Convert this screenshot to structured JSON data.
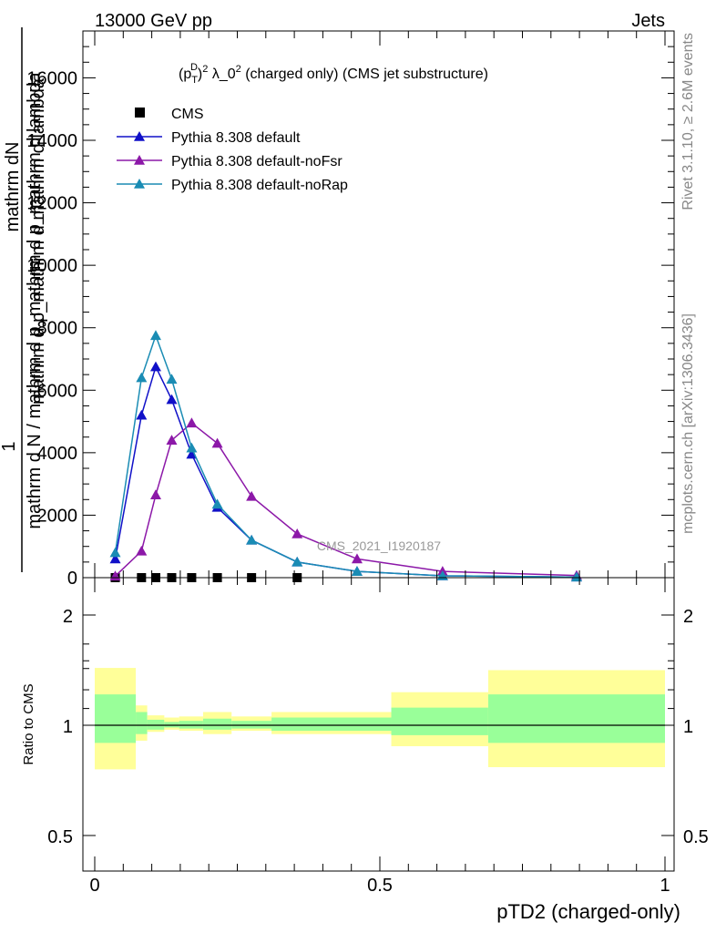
{
  "header": {
    "left": "13000 GeV pp",
    "right": "Jets"
  },
  "side_labels": {
    "rivet": "Rivet 3.1.10, ≥ 2.6M events",
    "mcplots": "mcplots.cern.ch [arXiv:1306.3436]"
  },
  "chart_data": [
    {
      "type": "line",
      "title_parts": {
        "pre": "(p",
        "sub": "T",
        "sup": "D",
        "post1": ")",
        "sup2": "2",
        "post2": " λ_0",
        "sup3": "2",
        "post3": " (charged only) (CMS jet substructure)"
      },
      "ylabel": {
        "numerator": "mathrm dN",
        "num_prefix": "1",
        "denominator": "mathrm d N / mathrm d p_mathrm d p_mathrm d lambda",
        "overlay": "mathrm d p_mathrm d mathrm d lambda"
      },
      "watermark": "CMS_2021_I1920187",
      "xlim": [
        0,
        1
      ],
      "ylim": [
        0,
        17500
      ],
      "y_ticks": [
        0,
        2000,
        4000,
        6000,
        8000,
        10000,
        12000,
        14000,
        16000
      ],
      "y_tick_labels": [
        "0",
        "2000",
        "4000",
        "6000",
        "8000",
        "10000",
        "12000",
        "14000",
        "16000"
      ],
      "legend_placement": "top-left",
      "series": [
        {
          "name": "CMS",
          "color": "#000000",
          "marker": "square",
          "x": [
            0.036,
            0.082,
            0.107,
            0.135,
            0.17,
            0.215,
            0.275,
            0.355
          ],
          "y": [
            0,
            0,
            0,
            0,
            0,
            0,
            0,
            0
          ]
        },
        {
          "name": "Pythia 8.308 default",
          "color": "#1010c8",
          "marker": "triangle",
          "x": [
            0.036,
            0.082,
            0.107,
            0.135,
            0.17,
            0.215,
            0.275,
            0.355,
            0.46,
            0.61,
            0.845
          ],
          "y": [
            600,
            5200,
            6750,
            5700,
            3950,
            2250,
            1200,
            500,
            200,
            60,
            20
          ]
        },
        {
          "name": "Pythia 8.308 default-noFsr",
          "color": "#8c18a8",
          "marker": "triangle",
          "x": [
            0.036,
            0.082,
            0.107,
            0.135,
            0.17,
            0.215,
            0.275,
            0.355,
            0.46,
            0.61,
            0.845
          ],
          "y": [
            50,
            850,
            2650,
            4400,
            4950,
            4300,
            2600,
            1400,
            600,
            200,
            70
          ]
        },
        {
          "name": "Pythia 8.308 default-noRap",
          "color": "#1a8cb4",
          "marker": "triangle",
          "x": [
            0.036,
            0.082,
            0.107,
            0.135,
            0.17,
            0.215,
            0.275,
            0.355,
            0.46,
            0.61,
            0.845
          ],
          "y": [
            800,
            6400,
            7750,
            6350,
            4150,
            2350,
            1200,
            500,
            200,
            60,
            20
          ]
        }
      ]
    },
    {
      "type": "area",
      "ylabel": "Ratio to CMS",
      "xlabel": "pTD2 (charged-only)",
      "xlim": [
        0,
        1
      ],
      "ylim": [
        0.4,
        2.3
      ],
      "x_ticks": [
        0,
        0.5,
        1
      ],
      "x_tick_labels": [
        "0",
        "0.5",
        "1"
      ],
      "y_ticks": [
        0.5,
        1,
        2
      ],
      "y_tick_labels": [
        "0.5",
        "1",
        "2"
      ],
      "reference_line": 1,
      "band_colors": {
        "outer": "#ffff99",
        "inner": "#99ff99"
      },
      "bins": [
        {
          "x0": 0.0,
          "x1": 0.072,
          "outer": [
            0.6,
            1.52
          ],
          "inner": [
            0.84,
            1.28
          ]
        },
        {
          "x0": 0.072,
          "x1": 0.092,
          "outer": [
            0.86,
            1.18
          ],
          "inner": [
            0.92,
            1.12
          ]
        },
        {
          "x0": 0.092,
          "x1": 0.122,
          "outer": [
            0.94,
            1.09
          ],
          "inner": [
            0.96,
            1.05
          ]
        },
        {
          "x0": 0.122,
          "x1": 0.148,
          "outer": [
            0.96,
            1.07
          ],
          "inner": [
            0.98,
            1.03
          ]
        },
        {
          "x0": 0.148,
          "x1": 0.19,
          "outer": [
            0.95,
            1.08
          ],
          "inner": [
            0.97,
            1.04
          ]
        },
        {
          "x0": 0.19,
          "x1": 0.24,
          "outer": [
            0.92,
            1.12
          ],
          "inner": [
            0.96,
            1.06
          ]
        },
        {
          "x0": 0.24,
          "x1": 0.31,
          "outer": [
            0.95,
            1.08
          ],
          "inner": [
            0.97,
            1.04
          ]
        },
        {
          "x0": 0.31,
          "x1": 0.52,
          "outer": [
            0.92,
            1.12
          ],
          "inner": [
            0.95,
            1.07
          ]
        },
        {
          "x0": 0.52,
          "x1": 0.69,
          "outer": [
            0.81,
            1.3
          ],
          "inner": [
            0.91,
            1.16
          ]
        },
        {
          "x0": 0.69,
          "x1": 1.0,
          "outer": [
            0.62,
            1.5
          ],
          "inner": [
            0.84,
            1.28
          ]
        }
      ]
    }
  ]
}
